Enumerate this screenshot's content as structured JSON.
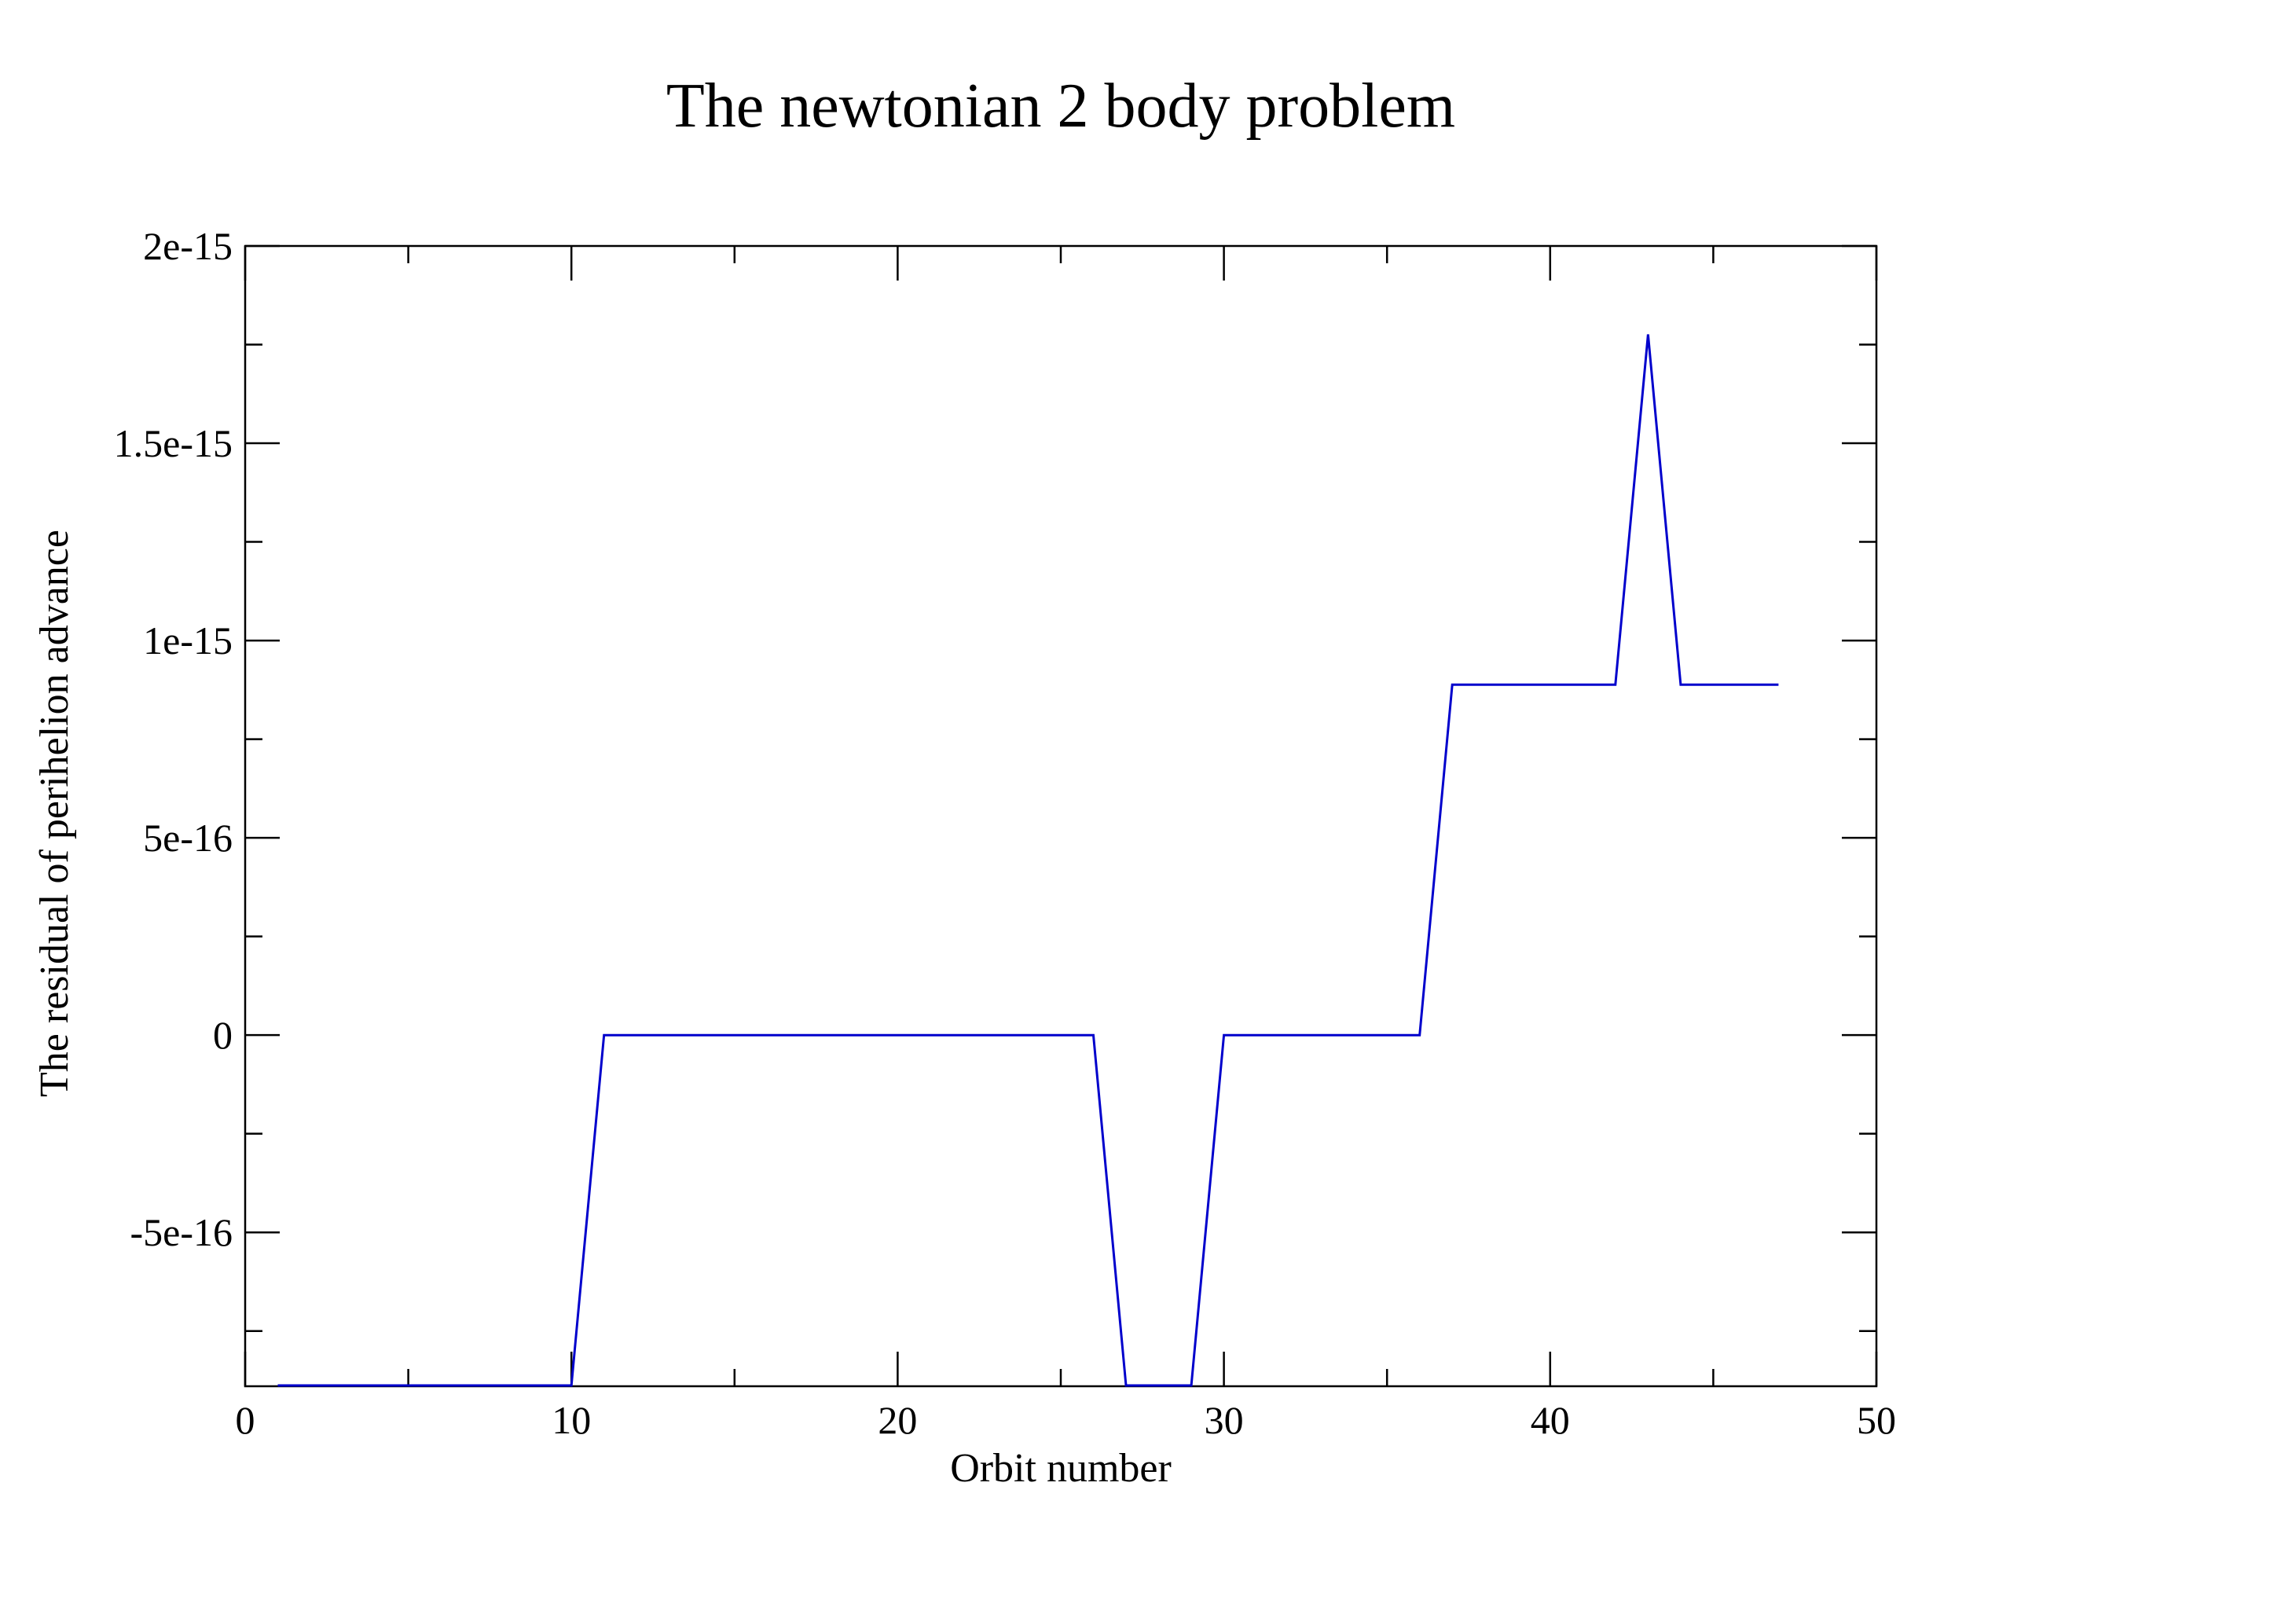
{
  "chart_data": {
    "type": "line",
    "title": "The newtonian 2 body problem",
    "xlabel": "Orbit number",
    "ylabel": "The residual of perihelion advance",
    "xlim": [
      0,
      50
    ],
    "ylim": [
      -8.9e-16,
      2e-15
    ],
    "x_ticks": [
      0,
      10,
      20,
      30,
      40,
      50
    ],
    "x_tick_labels": [
      "0",
      "10",
      "20",
      "30",
      "40",
      "50"
    ],
    "y_ticks": [
      -5e-16,
      0,
      5e-16,
      1e-15,
      1.5e-15,
      2e-15
    ],
    "y_tick_labels": [
      "-5e-16",
      "0",
      "5e-16",
      "1e-15",
      "1.5e-15",
      "2e-15"
    ],
    "grid": false,
    "line_color": "#0000cc",
    "series": [
      {
        "x": [
          1,
          2,
          3,
          4,
          5,
          6,
          7,
          8,
          9,
          10,
          11,
          12,
          13,
          14,
          15,
          16,
          17,
          18,
          19,
          20,
          21,
          22,
          23,
          24,
          25,
          26,
          27,
          28,
          29,
          30,
          31,
          32,
          33,
          34,
          35,
          36,
          37,
          38,
          39,
          40,
          41,
          42,
          43,
          44,
          45,
          46,
          47
        ],
        "values": [
          -8.88e-16,
          -8.88e-16,
          -8.88e-16,
          -8.88e-16,
          -8.88e-16,
          -8.88e-16,
          -8.88e-16,
          -8.88e-16,
          -8.88e-16,
          -8.88e-16,
          0,
          0,
          0,
          0,
          0,
          0,
          0,
          0,
          0,
          0,
          0,
          0,
          0,
          0,
          0,
          0,
          -8.88e-16,
          -8.88e-16,
          -8.88e-16,
          0,
          0,
          0,
          0,
          0,
          0,
          0,
          8.88e-16,
          8.88e-16,
          8.88e-16,
          8.88e-16,
          8.88e-16,
          8.88e-16,
          1.776e-15,
          8.88e-16,
          8.88e-16,
          8.88e-16,
          8.88e-16
        ]
      }
    ]
  }
}
